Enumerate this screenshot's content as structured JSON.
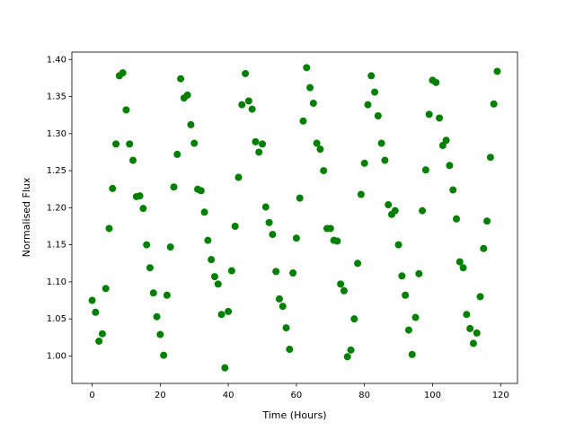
{
  "chart_data": {
    "type": "scatter",
    "xlabel": "Time (Hours)",
    "ylabel": "Normalised Flux",
    "color": "#008000",
    "x": [
      0,
      1,
      2,
      3,
      4,
      5,
      6,
      7,
      8,
      9,
      10,
      11,
      12,
      13,
      14,
      15,
      16,
      17,
      18,
      19,
      20,
      21,
      22,
      23,
      24,
      25,
      26,
      27,
      28,
      29,
      30,
      31,
      32,
      33,
      34,
      35,
      36,
      37,
      38,
      39,
      40,
      41,
      42,
      43,
      44,
      45,
      46,
      47,
      48,
      49,
      50,
      51,
      52,
      53,
      54,
      55,
      56,
      57,
      58,
      59,
      60,
      61,
      62,
      63,
      64,
      65,
      66,
      67,
      68,
      69,
      70,
      71,
      72,
      73,
      74,
      75,
      76,
      77,
      78,
      79,
      80,
      81,
      82,
      83,
      84,
      85,
      86,
      87,
      88,
      89,
      90,
      91,
      92,
      93,
      94,
      95,
      96,
      97,
      98,
      99,
      100,
      101,
      102,
      103,
      104,
      105,
      106,
      107,
      108,
      109,
      110,
      111,
      112,
      113,
      114,
      115,
      116,
      117,
      118,
      119
    ],
    "values": [
      1.075,
      1.059,
      1.02,
      1.03,
      1.091,
      1.172,
      1.226,
      1.286,
      1.378,
      1.382,
      1.332,
      1.286,
      1.264,
      1.215,
      1.216,
      1.199,
      1.15,
      1.119,
      1.085,
      1.053,
      1.029,
      1.001,
      1.082,
      1.147,
      1.228,
      1.272,
      1.374,
      1.348,
      1.352,
      1.312,
      1.287,
      1.225,
      1.223,
      1.194,
      1.156,
      1.13,
      1.107,
      1.097,
      1.056,
      0.984,
      1.06,
      1.115,
      1.175,
      1.241,
      1.339,
      1.381,
      1.344,
      1.333,
      1.289,
      1.275,
      1.286,
      1.201,
      1.18,
      1.164,
      1.114,
      1.077,
      1.067,
      1.038,
      1.009,
      1.112,
      1.159,
      1.213,
      1.317,
      1.389,
      1.362,
      1.341,
      1.287,
      1.279,
      1.25,
      1.172,
      1.172,
      1.156,
      1.155,
      1.097,
      1.088,
      0.999,
      1.008,
      1.05,
      1.125,
      1.218,
      1.26,
      1.339,
      1.378,
      1.356,
      1.324,
      1.287,
      1.264,
      1.204,
      1.191,
      1.196,
      1.15,
      1.108,
      1.082,
      1.035,
      1.002,
      1.052,
      1.111,
      1.196,
      1.251,
      1.326,
      1.372,
      1.369,
      1.321,
      1.284,
      1.291,
      1.257,
      1.224,
      1.185,
      1.127,
      1.119,
      1.056,
      1.037,
      1.017,
      1.031,
      1.08,
      1.145,
      1.182,
      1.268,
      1.34,
      1.384
    ],
    "xlim": [
      -5.95,
      124.95
    ],
    "xticks": [
      0,
      20,
      40,
      60,
      80,
      100,
      120
    ],
    "ylim": [
      0.963,
      1.41
    ],
    "yticks": [
      {
        "value": 1.0,
        "label": "1.00"
      },
      {
        "value": 1.05,
        "label": "1.05"
      },
      {
        "value": 1.1,
        "label": "1.10"
      },
      {
        "value": 1.15,
        "label": "1.15"
      },
      {
        "value": 1.2,
        "label": "1.20"
      },
      {
        "value": 1.25,
        "label": "1.25"
      },
      {
        "value": 1.3,
        "label": "1.30"
      },
      {
        "value": 1.35,
        "label": "1.35"
      },
      {
        "value": 1.4,
        "label": "1.40"
      }
    ]
  }
}
